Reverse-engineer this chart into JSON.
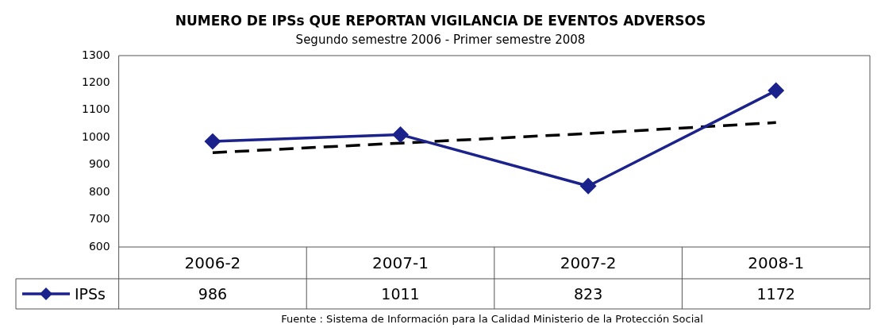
{
  "chart_data": {
    "type": "line",
    "title": "NUMERO DE IPSs QUE REPORTAN VIGILANCIA DE EVENTOS ADVERSOS",
    "subtitle": "Segundo semestre 2006 - Primer semestre 2008",
    "categories": [
      "2006-2",
      "2007-1",
      "2007-2",
      "2008-1"
    ],
    "series": [
      {
        "name": "IPSs",
        "color": "#1c228c",
        "values": [
          986,
          1011,
          823,
          1172
        ],
        "value_labels": [
          "986",
          "1011",
          "823",
          "1172"
        ],
        "marker": "diamond",
        "line_style": "solid"
      },
      {
        "type": "line",
        "color": "#000000",
        "values": [
          945,
          980,
          1015,
          1055
        ],
        "marker": "none",
        "line_style": "dashed"
      }
    ],
    "ylim": [
      600,
      1300
    ],
    "yticks": [
      600,
      700,
      800,
      900,
      1000,
      1100,
      1200,
      1300
    ],
    "grid": false,
    "legend": "bottom left",
    "annotations": [
      "Fuente : Sistema de Información para la Calidad Ministerio de la Protección Social"
    ]
  }
}
